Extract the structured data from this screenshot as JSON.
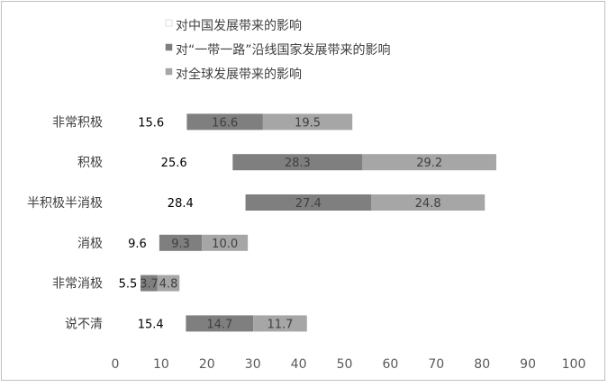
{
  "chart_data": {
    "type": "bar",
    "orientation": "horizontal",
    "stacked": true,
    "categories": [
      "非常积极",
      "积极",
      "半积极半消极",
      "消极",
      "非常消极",
      "说不清"
    ],
    "series": [
      {
        "name": "对中国发展带来的影响",
        "color": "#ffffff",
        "label_color": "#000000",
        "values": [
          15.6,
          25.6,
          28.4,
          9.6,
          5.5,
          15.4
        ]
      },
      {
        "name": "对“一带一路”沿线国家发展带来的影响",
        "color": "#7f7f7f",
        "label_color": "#404040",
        "values": [
          16.6,
          28.3,
          27.4,
          9.3,
          3.7,
          14.7
        ]
      },
      {
        "name": "对全球发展带来的影响",
        "color": "#a6a6a6",
        "label_color": "#404040",
        "values": [
          19.5,
          29.2,
          24.8,
          10.0,
          4.8,
          11.7
        ]
      }
    ],
    "value_labels": [
      [
        "15.6",
        "25.6",
        "28.4",
        "9.6",
        "5.5",
        "15.4"
      ],
      [
        "16.6",
        "28.3",
        "27.4",
        "9.3",
        "3.7",
        "14.7"
      ],
      [
        "19.5",
        "29.2",
        "24.8",
        "10.0",
        "4.8",
        "11.7"
      ]
    ],
    "xlim": [
      0,
      100
    ],
    "xticks": [
      "0",
      "10",
      "20",
      "30",
      "40",
      "50",
      "60",
      "70",
      "80",
      "90",
      "100"
    ],
    "grid": false,
    "legend_position": "top-left",
    "title": "",
    "xlabel": "",
    "ylabel": ""
  }
}
